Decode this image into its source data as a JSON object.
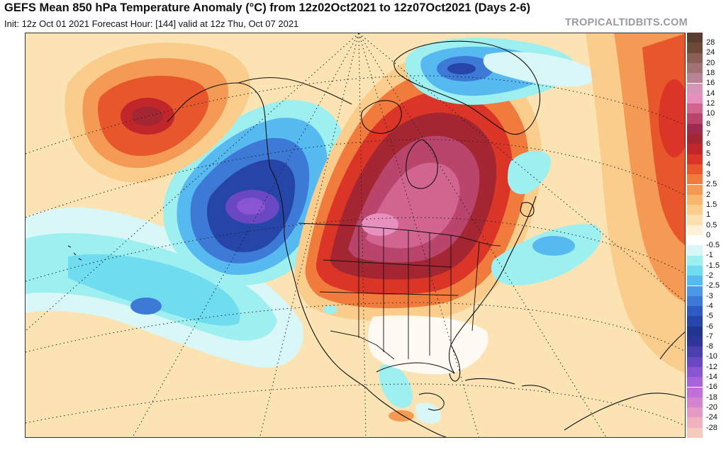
{
  "header": {
    "title": "GEFS Mean 850 hPa Temperature Anomaly (°C) from 12z02Oct2021 to 12z07Oct2021 (Days 2-6)",
    "subtitle": "Init: 12z Oct 01 2021   Forecast Hour: [144]   valid at 12z Thu, Oct 07 2021",
    "credit": "TROPICALTIDBITS.COM"
  },
  "legend": {
    "entries": [
      {
        "label": "28",
        "color": "#6b4a3a"
      },
      {
        "label": "24",
        "color": "#8a5f56"
      },
      {
        "label": "20",
        "color": "#a07273"
      },
      {
        "label": "18",
        "color": "#b88392"
      },
      {
        "label": "16",
        "color": "#d596b8"
      },
      {
        "label": "14",
        "color": "#e78fbf"
      },
      {
        "label": "12",
        "color": "#d2658f"
      },
      {
        "label": "10",
        "color": "#b9456c"
      },
      {
        "label": "8",
        "color": "#9e2a4d"
      },
      {
        "label": "7",
        "color": "#a42632"
      },
      {
        "label": "6",
        "color": "#c0262a"
      },
      {
        "label": "5",
        "color": "#db3527"
      },
      {
        "label": "4",
        "color": "#e8562c"
      },
      {
        "label": "3",
        "color": "#f07b3d"
      },
      {
        "label": "2.5",
        "color": "#f59a55"
      },
      {
        "label": "2",
        "color": "#f8b66f"
      },
      {
        "label": "1.5",
        "color": "#fbcd8c"
      },
      {
        "label": "1",
        "color": "#fde1ae"
      },
      {
        "label": "0.5",
        "color": "#fef1d7"
      },
      {
        "label": "0",
        "color": "#ffffff"
      },
      {
        "label": "-0.5",
        "color": "#d9f7f7"
      },
      {
        "label": "-1",
        "color": "#9eeff0"
      },
      {
        "label": "-1.5",
        "color": "#6fdcef"
      },
      {
        "label": "-2",
        "color": "#56b9ef"
      },
      {
        "label": "-2.5",
        "color": "#4a98e6"
      },
      {
        "label": "-3",
        "color": "#3d79d6"
      },
      {
        "label": "-4",
        "color": "#2f5bc4"
      },
      {
        "label": "-5",
        "color": "#2645a8"
      },
      {
        "label": "-6",
        "color": "#21358f"
      },
      {
        "label": "-7",
        "color": "#2f3598"
      },
      {
        "label": "-8",
        "color": "#4a3fae"
      },
      {
        "label": "-10",
        "color": "#6a48c4"
      },
      {
        "label": "-12",
        "color": "#8a55d2"
      },
      {
        "label": "-14",
        "color": "#a863da"
      },
      {
        "label": "-16",
        "color": "#c06fd8"
      },
      {
        "label": "-18",
        "color": "#d483cf"
      },
      {
        "label": "-20",
        "color": "#e59ac6"
      },
      {
        "label": "-24",
        "color": "#f0b2bd"
      },
      {
        "label": "-28",
        "color": "#f7c9bc"
      }
    ],
    "top_cap_color": "#5a3d30"
  },
  "map": {
    "background_color": "#fbe3b4",
    "warm_colors": [
      "#fbcd8c",
      "#f8b66f",
      "#f59a55",
      "#f07b3d",
      "#e8562c",
      "#db3527",
      "#c0262a",
      "#a42632",
      "#9e2a4d",
      "#b9456c",
      "#d2658f",
      "#e78fbf"
    ],
    "cold_colors": [
      "#d9f7f7",
      "#9eeff0",
      "#6fdcef",
      "#56b9ef",
      "#4a98e6",
      "#3d79d6",
      "#2f5bc4",
      "#2645a8",
      "#4a3fae",
      "#6a48c4"
    ]
  }
}
